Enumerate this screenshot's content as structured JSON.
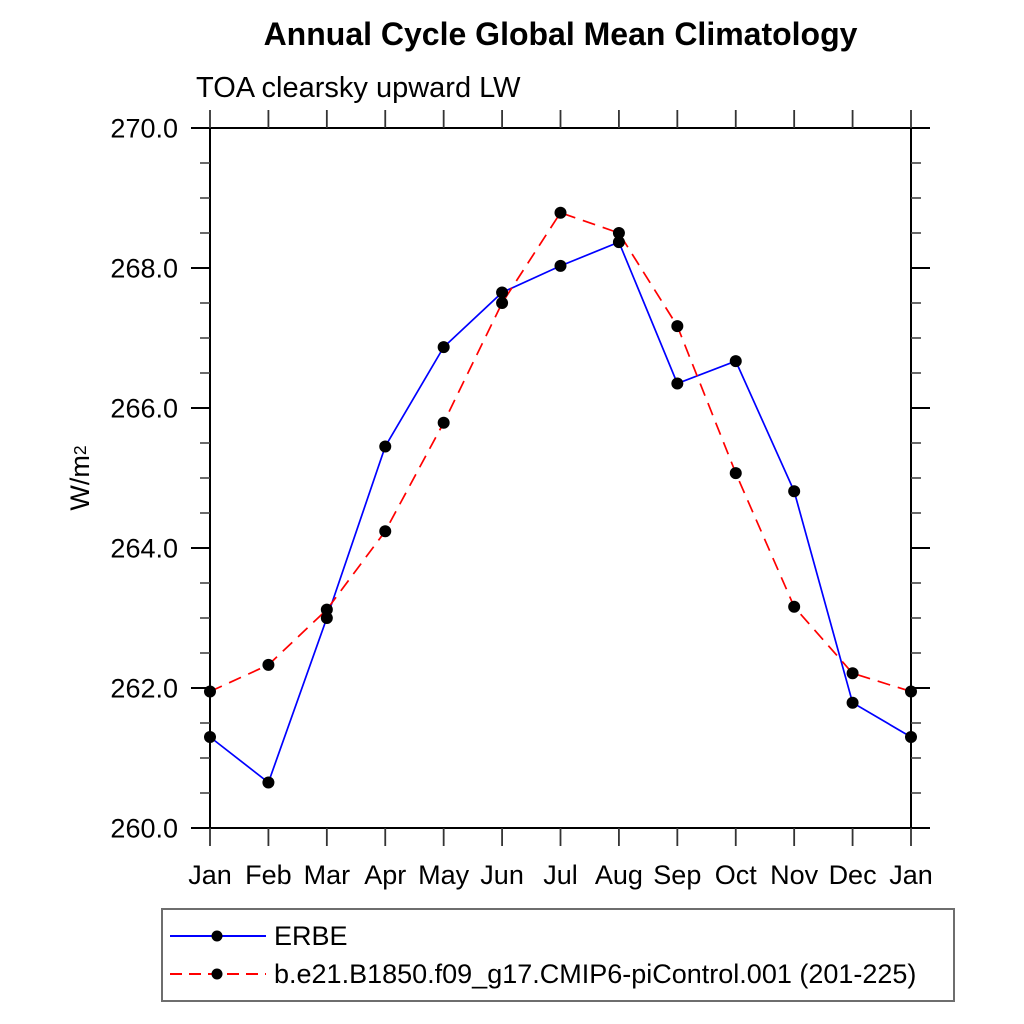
{
  "page": {
    "background": "#ffffff"
  },
  "chart_data": {
    "type": "line",
    "title": "Annual Cycle Global Mean Climatology",
    "subtitle": "TOA clearsky upward LW",
    "ylabel_base": "W/m",
    "ylabel_sup": "2",
    "xlabel": "",
    "categories": [
      "Jan",
      "Feb",
      "Mar",
      "Apr",
      "May",
      "Jun",
      "Jul",
      "Aug",
      "Sep",
      "Oct",
      "Nov",
      "Dec",
      "Jan"
    ],
    "ylim": [
      260.0,
      270.0
    ],
    "ytick_major": [
      {
        "value": 260.0,
        "label": "260.0"
      },
      {
        "value": 262.0,
        "label": "262.0"
      },
      {
        "value": 264.0,
        "label": "264.0"
      },
      {
        "value": 266.0,
        "label": "266.0"
      },
      {
        "value": 268.0,
        "label": "268.0"
      },
      {
        "value": 270.0,
        "label": "270.0"
      }
    ],
    "ytick_minor_step": 0.5,
    "grid": false,
    "legend_position": "bottom",
    "axis_color": "#000000",
    "marker_shape": "filled-circle",
    "series": [
      {
        "name": "ERBE",
        "color": "#0000ff",
        "style": "solid",
        "marker_color": "#000000",
        "values": [
          261.3,
          260.65,
          263.0,
          265.45,
          266.87,
          267.65,
          268.03,
          268.37,
          266.35,
          266.67,
          264.81,
          261.79,
          261.3
        ]
      },
      {
        "name": "b.e21.B1850.f09_g17.CMIP6-piControl.001 (201-225)",
        "color": "#ff0000",
        "style": "dashed",
        "marker_color": "#000000",
        "values": [
          261.95,
          262.33,
          263.12,
          264.24,
          265.79,
          267.5,
          268.79,
          268.5,
          267.17,
          265.07,
          263.16,
          262.21,
          261.95
        ]
      }
    ]
  }
}
